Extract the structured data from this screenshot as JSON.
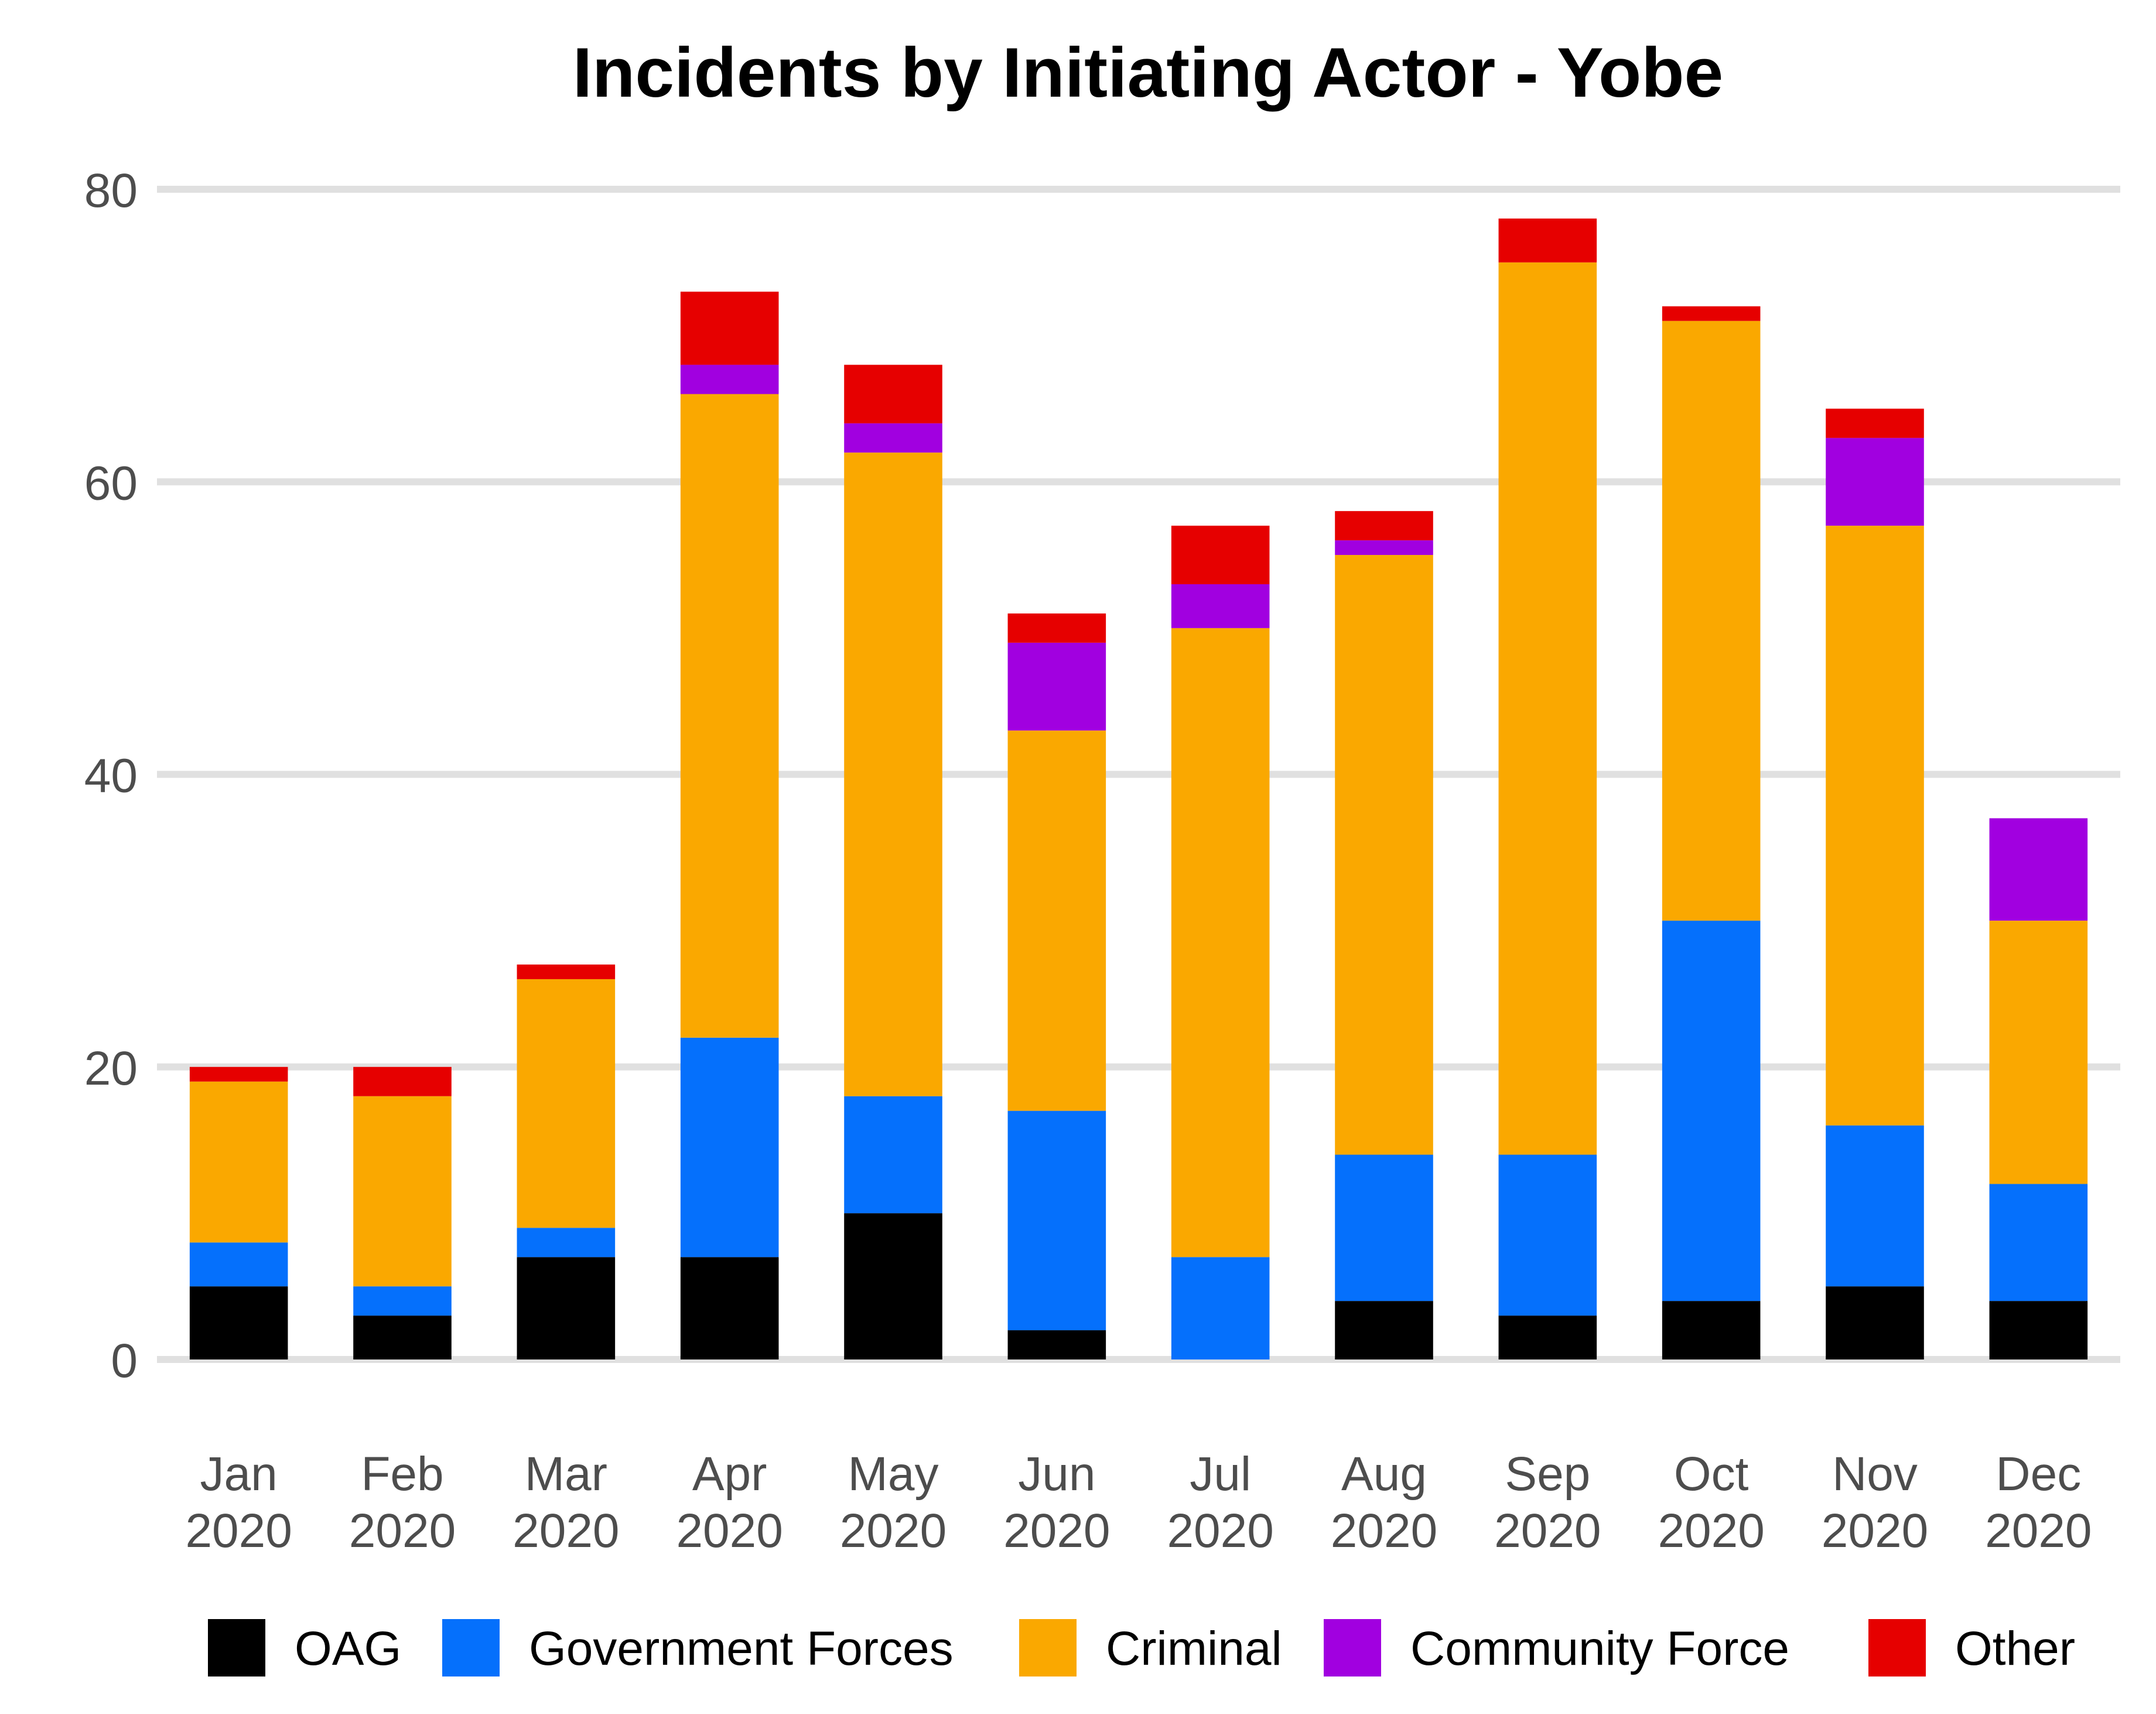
{
  "chart_data": {
    "type": "bar",
    "stacked": true,
    "title": "Incidents by Initiating Actor - Yobe",
    "xlabel": "",
    "ylabel": "",
    "ylim": [
      0,
      80
    ],
    "yticks": [
      "0",
      "20",
      "40",
      "60",
      "80"
    ],
    "grid": true,
    "legend_position": "bottom",
    "categories": [
      {
        "month": "Jan",
        "year": "2020"
      },
      {
        "month": "Feb",
        "year": "2020"
      },
      {
        "month": "Mar",
        "year": "2020"
      },
      {
        "month": "Apr",
        "year": "2020"
      },
      {
        "month": "May",
        "year": "2020"
      },
      {
        "month": "Jun",
        "year": "2020"
      },
      {
        "month": "Jul",
        "year": "2020"
      },
      {
        "month": "Aug",
        "year": "2020"
      },
      {
        "month": "Sep",
        "year": "2020"
      },
      {
        "month": "Oct",
        "year": "2020"
      },
      {
        "month": "Nov",
        "year": "2020"
      },
      {
        "month": "Dec",
        "year": "2020"
      }
    ],
    "series": [
      {
        "name": "OAG",
        "color": "#000000",
        "values": [
          5,
          3,
          7,
          7,
          10,
          2,
          0,
          4,
          3,
          4,
          5,
          4
        ]
      },
      {
        "name": "Government Forces",
        "color": "#0570fc",
        "values": [
          3,
          2,
          2,
          15,
          8,
          15,
          7,
          10,
          11,
          26,
          11,
          8
        ]
      },
      {
        "name": "Criminal",
        "color": "#faa800",
        "values": [
          11,
          13,
          17,
          44,
          44,
          26,
          43,
          41,
          61,
          41,
          41,
          18
        ]
      },
      {
        "name": "Community Force",
        "color": "#a100e0",
        "values": [
          0,
          0,
          0,
          2,
          2,
          6,
          3,
          1,
          0,
          0,
          6,
          7
        ]
      },
      {
        "name": "Other",
        "color": "#e60000",
        "values": [
          1,
          2,
          1,
          5,
          4,
          2,
          4,
          2,
          3,
          1,
          2,
          0
        ]
      }
    ]
  }
}
